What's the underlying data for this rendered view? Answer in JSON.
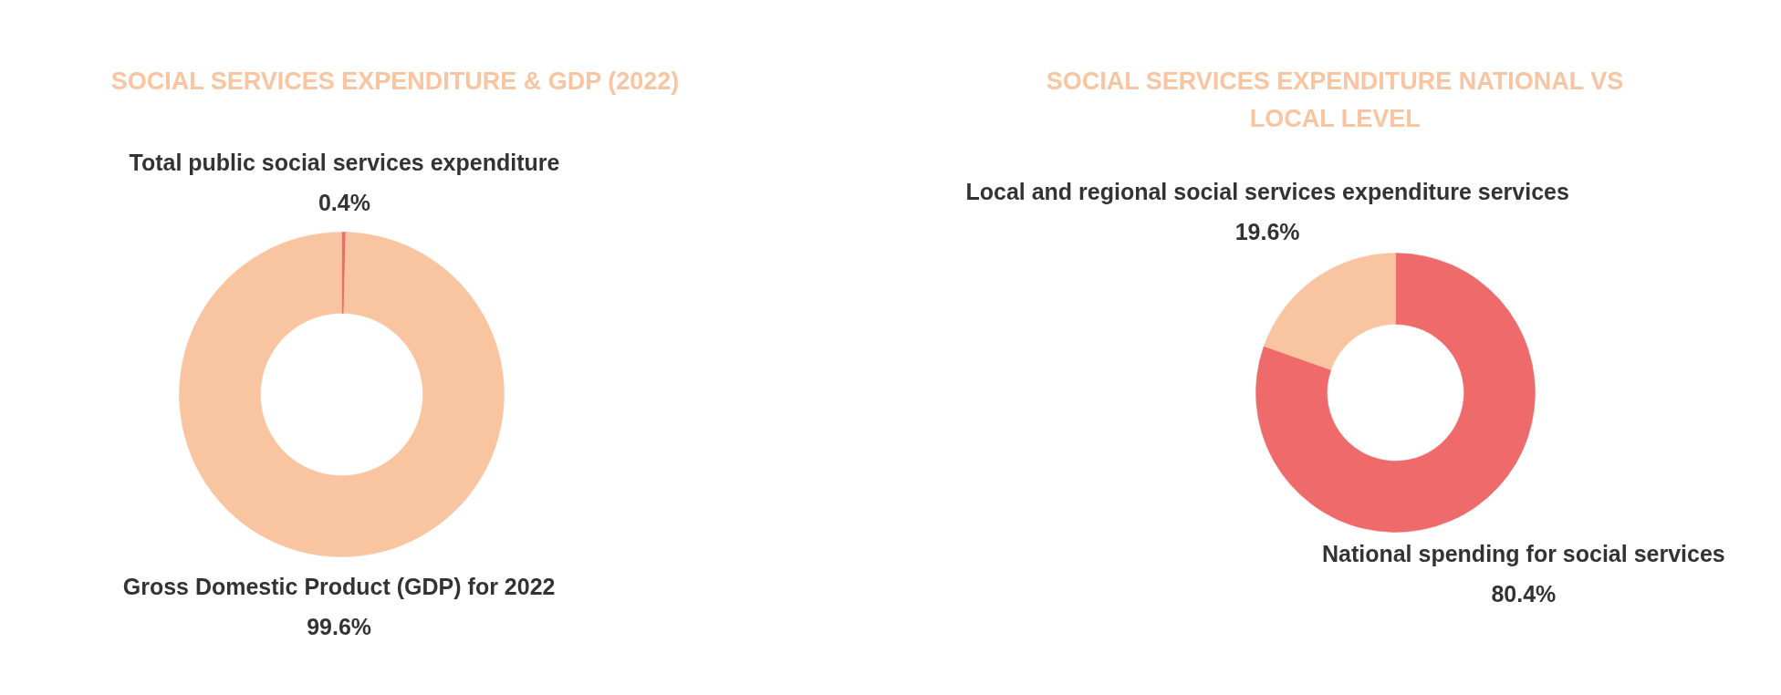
{
  "chart_data": [
    {
      "type": "donut",
      "title": "SOCIAL SERVICES EXPENDITURE & GDP (2022)",
      "categories": [
        "Total public social services expenditure",
        "Gross Domestic Product (GDP) for 2022"
      ],
      "values": [
        0.4,
        99.6
      ],
      "colors": [
        "#ef6b6b",
        "#f9c5a1"
      ],
      "value_labels": [
        "0.4%",
        "99.6%"
      ],
      "legend": false
    },
    {
      "type": "donut",
      "title": "SOCIAL SERVICES EXPENDITURE NATIONAL VS LOCAL LEVEL",
      "categories": [
        "National spending for social services",
        "Local and regional social services expenditure services"
      ],
      "values": [
        80.4,
        19.6
      ],
      "colors": [
        "#ef6b6b",
        "#f9c5a1"
      ],
      "value_labels": [
        "80.4%",
        "19.6%"
      ],
      "legend": false
    }
  ]
}
